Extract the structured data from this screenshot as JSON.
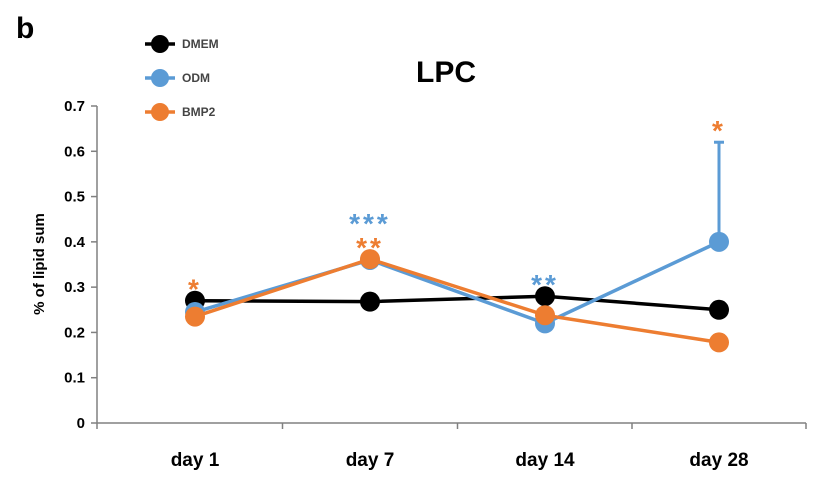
{
  "panel_label": "b",
  "chart_data": {
    "type": "line",
    "title": "LPC",
    "xlabel": "",
    "ylabel": "% of lipid sum",
    "categories": [
      "day 1",
      "day 7",
      "day 14",
      "day 28"
    ],
    "ylim": [
      0,
      0.7
    ],
    "yticks": [
      "0",
      "0.1",
      "0.2",
      "0.3",
      "0.4",
      "0.5",
      "0.6",
      "0.7"
    ],
    "grid": false,
    "legend_position": "top-left",
    "series": [
      {
        "name": "DMEM",
        "color": "#000000",
        "values": [
          0.27,
          0.268,
          0.28,
          0.25
        ]
      },
      {
        "name": "ODM",
        "color": "#5b9bd5",
        "values": [
          0.245,
          0.36,
          0.22,
          0.4
        ],
        "error_up": [
          null,
          null,
          null,
          0.22
        ]
      },
      {
        "name": "BMP2",
        "color": "#ed7d31",
        "values": [
          0.235,
          0.362,
          0.238,
          0.178
        ]
      }
    ],
    "annotations": [
      {
        "text": "*",
        "category": "day 1",
        "color": "#ed7d31",
        "level": 0
      },
      {
        "text": "***",
        "category": "day 7",
        "color": "#5b9bd5",
        "level": 1
      },
      {
        "text": "**",
        "category": "day 7",
        "color": "#ed7d31",
        "level": 0
      },
      {
        "text": "**",
        "category": "day 14",
        "color": "#5b9bd5",
        "level": 0
      },
      {
        "text": "*",
        "category": "day 28",
        "color": "#ed7d31",
        "level": 0
      }
    ]
  }
}
